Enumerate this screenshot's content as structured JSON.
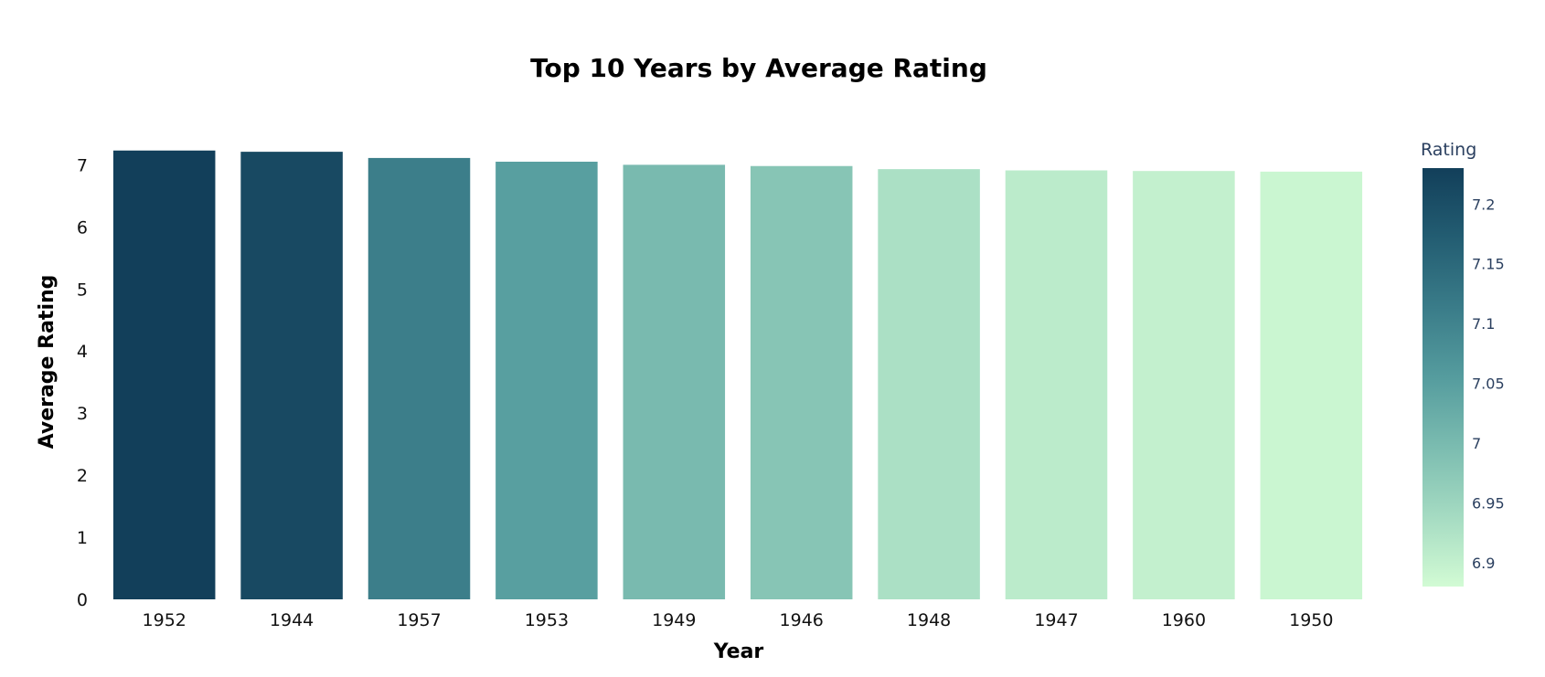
{
  "chart_data": {
    "type": "bar",
    "title": "Top 10 Years by Average Rating",
    "xlabel": "Year",
    "ylabel": "Average Rating",
    "categories": [
      "1952",
      "1944",
      "1957",
      "1953",
      "1949",
      "1946",
      "1948",
      "1947",
      "1960",
      "1950"
    ],
    "values": [
      7.23,
      7.21,
      7.11,
      7.05,
      7.0,
      6.98,
      6.93,
      6.91,
      6.9,
      6.89
    ],
    "ylim": [
      0,
      7.3
    ],
    "yticks": [
      0,
      1,
      2,
      3,
      4,
      5,
      6,
      7
    ],
    "grid": false,
    "colorbar": {
      "title": "Rating",
      "range": [
        6.88,
        7.23
      ],
      "ticks": [
        "7.2",
        "7.15",
        "7.1",
        "7.05",
        "7",
        "6.95",
        "6.9"
      ],
      "colors": [
        "#d2fbd4",
        "#a5dbc2",
        "#7bbcb0",
        "#559c9e",
        "#3a7c89",
        "#235d72",
        "#123f5a"
      ]
    }
  }
}
